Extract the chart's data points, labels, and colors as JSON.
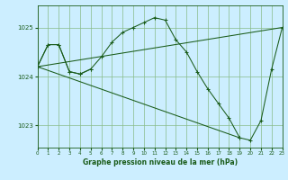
{
  "title": "Graphe pression niveau de la mer (hPa)",
  "bg_color": "#cceeff",
  "grid_color": "#88bb88",
  "line_color": "#1a5c1a",
  "xlim": [
    0,
    23
  ],
  "ylim": [
    1022.55,
    1025.45
  ],
  "yticks": [
    1023,
    1024,
    1025
  ],
  "xticks": [
    0,
    1,
    2,
    3,
    4,
    5,
    6,
    7,
    8,
    9,
    10,
    11,
    12,
    13,
    14,
    15,
    16,
    17,
    18,
    19,
    20,
    21,
    22,
    23
  ],
  "series": [
    {
      "x": [
        0,
        1,
        2,
        3,
        4,
        5,
        6,
        7,
        8,
        9,
        10,
        11,
        12,
        13,
        14,
        15,
        16,
        17,
        18,
        19,
        20,
        21,
        22,
        23
      ],
      "y": [
        1024.2,
        1024.65,
        1024.65,
        1024.1,
        1024.05,
        1024.15,
        1024.4,
        1024.7,
        1024.9,
        1025.0,
        1025.1,
        1025.2,
        1025.15,
        1024.75,
        1024.5,
        1024.1,
        1023.75,
        1023.45,
        1023.15,
        1022.75,
        1022.7,
        1023.1,
        1024.15,
        1025.0
      ]
    },
    {
      "x": [
        0,
        23
      ],
      "y": [
        1024.2,
        1025.0
      ]
    },
    {
      "x": [
        0,
        19
      ],
      "y": [
        1024.2,
        1022.75
      ]
    },
    {
      "x": [
        0,
        1,
        2,
        3,
        4,
        5
      ],
      "y": [
        1024.2,
        1024.65,
        1024.65,
        1024.1,
        1024.05,
        1024.15
      ]
    }
  ]
}
